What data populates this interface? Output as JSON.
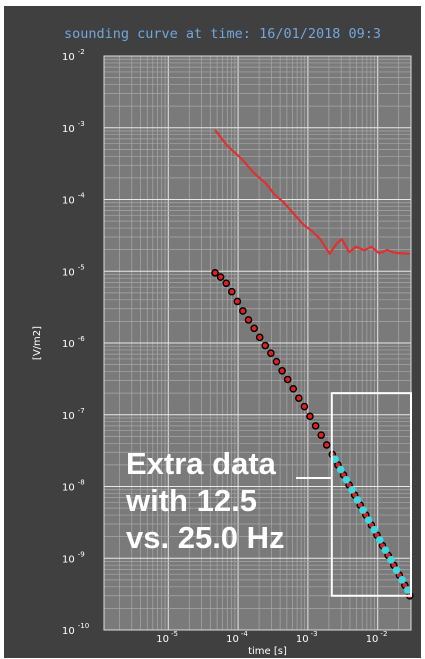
{
  "title": "sounding curve at time: 16/01/2018 09:3",
  "chart_data": {
    "type": "line",
    "xlabel": "time [s]",
    "ylabel": "[V/m2]",
    "x_scale": "log",
    "y_scale": "log",
    "xlim": [
      1.2e-06,
      0.03
    ],
    "ylim": [
      1e-10,
      0.01
    ],
    "grid": true,
    "y_ticks": [
      {
        "mant": "10",
        "exp": "-2",
        "value": 0.01
      },
      {
        "mant": "10",
        "exp": "-3",
        "value": 0.001
      },
      {
        "mant": "10",
        "exp": "-4",
        "value": 0.0001
      },
      {
        "mant": "10",
        "exp": "-5",
        "value": 1e-05
      },
      {
        "mant": "10",
        "exp": "-6",
        "value": 1e-06
      },
      {
        "mant": "10",
        "exp": "-7",
        "value": 1e-07
      },
      {
        "mant": "10",
        "exp": "-8",
        "value": 1e-08
      },
      {
        "mant": "10",
        "exp": "-9",
        "value": 1e-09
      },
      {
        "mant": "10",
        "exp": "-10",
        "value": 1e-10
      }
    ],
    "x_ticks": [
      {
        "mant": "10",
        "exp": "-5",
        "value": 1e-05
      },
      {
        "mant": "10",
        "exp": "-4",
        "value": 0.0001
      },
      {
        "mant": "10",
        "exp": "-3",
        "value": 0.001
      },
      {
        "mant": "10",
        "exp": "-2",
        "value": 0.01
      }
    ],
    "series": [
      {
        "style": "line",
        "color": "#e03030",
        "x": [
          4.68e-05,
          6.9e-05,
          0.000112,
          0.000175,
          0.00025,
          0.00033,
          0.00045,
          0.00062,
          0.00085,
          0.00112,
          0.0015,
          0.00205,
          0.0026,
          0.00305,
          0.0039,
          0.0049,
          0.0064,
          0.0081,
          0.0105,
          0.0137,
          0.0175,
          0.0224,
          0.0288
        ],
        "y": [
          0.00093,
          0.00057,
          0.00037,
          0.000225,
          0.000168,
          0.000118,
          9.1e-05,
          6.4e-05,
          4.5e-05,
          3.7e-05,
          2.8e-05,
          1.75e-05,
          2.45e-05,
          2.8e-05,
          1.85e-05,
          2.2e-05,
          1.95e-05,
          2.2e-05,
          1.78e-05,
          1.98e-05,
          1.8e-05,
          1.78e-05,
          1.75e-05
        ]
      },
      {
        "style": "markers",
        "marker_face": "#e02020",
        "marker_edge": "#000000",
        "x": [
          4.68e-05,
          5.62e-05,
          6.76e-05,
          8.13e-05,
          9.77e-05,
          0.000117,
          0.000141,
          0.00017,
          0.000204,
          0.000245,
          0.000295,
          0.000355,
          0.000427,
          0.000513,
          0.000617,
          0.000741,
          0.000891,
          0.00107,
          0.00129,
          0.00155,
          0.00186,
          0.00224,
          0.00269,
          0.00324,
          0.00389,
          0.00468,
          0.00562,
          0.00676,
          0.00813,
          0.00977,
          0.0117,
          0.0141,
          0.017,
          0.0204,
          0.0245,
          0.0288
        ],
        "y": [
          9.5e-06,
          8.3e-06,
          6.8e-06,
          5.2e-06,
          3.8e-06,
          2.8e-06,
          2.1e-06,
          1.6e-06,
          1.2e-06,
          9.2e-07,
          7.2e-07,
          5.5e-07,
          4.1e-07,
          3.1e-07,
          2.3e-07,
          1.7e-07,
          1.3e-07,
          9.5e-08,
          7e-08,
          5.2e-08,
          3.8e-08,
          2.8e-08,
          2e-08,
          1.45e-08,
          1.05e-08,
          7.6e-09,
          5.5e-09,
          4e-09,
          2.9e-09,
          2.1e-09,
          1.5e-09,
          1.1e-09,
          8e-10,
          5.8e-10,
          4.2e-10,
          3e-10
        ]
      },
      {
        "style": "markers",
        "marker_face": "#40d8e0",
        "marker_edge": "#40d8e0",
        "x": [
          0.00245,
          0.00295,
          0.00355,
          0.00427,
          0.00513,
          0.00617,
          0.00741,
          0.00891,
          0.0107,
          0.0129,
          0.0155,
          0.0186,
          0.0224,
          0.0269
        ],
        "y": [
          2.4e-08,
          1.72e-08,
          1.24e-08,
          9e-09,
          6.5e-09,
          4.7e-09,
          3.4e-09,
          2.5e-09,
          1.8e-09,
          1.3e-09,
          9.5e-10,
          6.8e-10,
          5e-10,
          3.6e-10
        ]
      }
    ],
    "annotation": {
      "lines": [
        "Extra data",
        "with 12.5",
        "vs. 25.0 Hz"
      ],
      "box_xlim": [
        0.0022,
        0.03
      ],
      "box_ylim": [
        3e-10,
        2e-07
      ],
      "box_color": "#ffffff"
    }
  }
}
